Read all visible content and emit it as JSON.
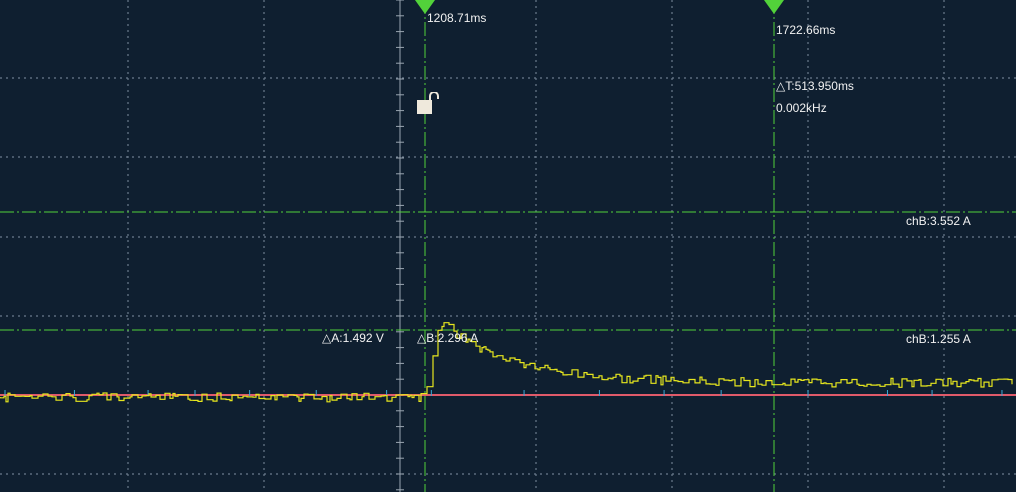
{
  "cursors": {
    "t1_label": "1208.71ms",
    "t2_label": "1722.66ms",
    "delta_t": "△T:513.950ms",
    "frequency": "0.002kHz",
    "delta_a": "△A:1.492 V",
    "delta_b": "△B:2.296 A",
    "chb_upper": "chB:3.552 A",
    "chb_lower": "chB:1.255 A"
  },
  "icons": {
    "trigger_lock": "unlock-icon",
    "cursor_marker": "triangle-down-icon"
  },
  "colors": {
    "background": "#0f1f30",
    "grid": "#6b7b8c",
    "cursor": "#52d23a",
    "channel_b_trace": "#e6e61e",
    "reference_trace": "#e05a6a",
    "channel_a_trace": "#3aa8d8"
  }
}
